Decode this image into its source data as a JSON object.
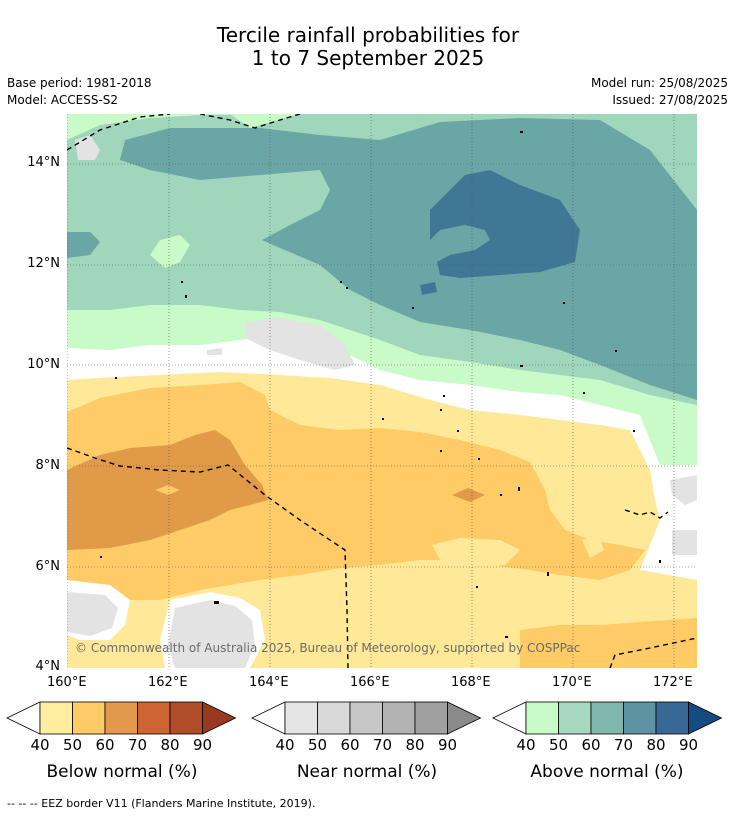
{
  "header": {
    "title_line1": "Tercile rainfall probabilities for",
    "title_line2": "1 to 7 September 2025",
    "base_period": "Base period: 1981-2018",
    "model": "Model: ACCESS-S2",
    "model_run": "Model run: 25/08/2025",
    "issued": "Issued: 27/08/2025"
  },
  "map": {
    "x_ticks": [
      "160°E",
      "162°E",
      "164°E",
      "166°E",
      "168°E",
      "170°E",
      "172°E"
    ],
    "y_ticks": [
      "14°N",
      "12°N",
      "10°N",
      "8°N",
      "6°N",
      "4°N"
    ],
    "copyright": "© Commonwealth of Australia 2025, Bureau of Meteorology, supported by COSPPac",
    "lon_range": [
      160,
      172.5
    ],
    "lat_range": [
      4,
      15
    ],
    "colors": {
      "above_50": "#a0d6bb",
      "above_60": "#6ba6a6",
      "above_40": "#c8fbc8",
      "above_70": "#3e7896",
      "near_40": "#e3e3e3",
      "below_40": "#ffe999",
      "below_50": "#fecb66",
      "below_60": "#e19a48"
    }
  },
  "colorbars": [
    {
      "title": "Below normal (%)",
      "labels": [
        "40",
        "50",
        "60",
        "70",
        "80",
        "90"
      ],
      "colors": [
        "#ffeea0",
        "#fecb66",
        "#e3994b",
        "#ce6433",
        "#b14c29",
        "#993a20"
      ]
    },
    {
      "title": "Near normal (%)",
      "labels": [
        "40",
        "50",
        "60",
        "70",
        "80",
        "90"
      ],
      "colors": [
        "#e5e5e5",
        "#d8d8d8",
        "#c7c7c7",
        "#b3b3b3",
        "#a0a0a0",
        "#8a8a8a"
      ]
    },
    {
      "title": "Above normal (%)",
      "labels": [
        "40",
        "50",
        "60",
        "70",
        "80",
        "90"
      ],
      "colors": [
        "#c8fbc8",
        "#a6d8bd",
        "#80b7ad",
        "#5d93a3",
        "#386895",
        "#134b82"
      ]
    }
  ],
  "footer": {
    "legend_text": "--  --  -- EEZ border V11 (Flanders Marine Institute, 2019)."
  }
}
